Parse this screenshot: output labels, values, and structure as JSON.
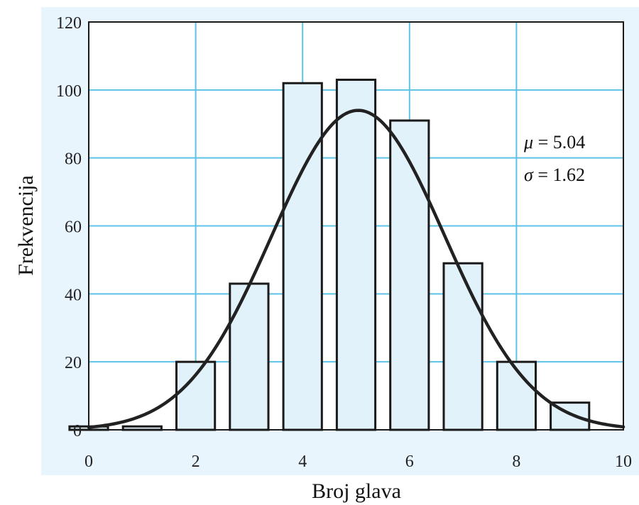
{
  "chart_data": {
    "type": "bar",
    "xlabel": "Broj glava",
    "ylabel": "Frekvencija",
    "xlim": [
      0,
      10
    ],
    "ylim": [
      0,
      120
    ],
    "xticks": [
      0,
      2,
      4,
      6,
      8,
      10
    ],
    "yticks": [
      0,
      20,
      40,
      60,
      80,
      100,
      120
    ],
    "grid": true,
    "bars": [
      {
        "x": 0,
        "value": 1
      },
      {
        "x": 1,
        "value": 1
      },
      {
        "x": 2,
        "value": 20
      },
      {
        "x": 3,
        "value": 43
      },
      {
        "x": 4,
        "value": 102
      },
      {
        "x": 5,
        "value": 103
      },
      {
        "x": 6,
        "value": 91
      },
      {
        "x": 7,
        "value": 49
      },
      {
        "x": 8,
        "value": 20
      },
      {
        "x": 9,
        "value": 8
      }
    ],
    "fit_curve": {
      "type": "normal",
      "mu": 5.04,
      "sigma": 1.62,
      "peak": 94
    },
    "annotations": [
      {
        "symbol": "μ",
        "text": " = 5.04"
      },
      {
        "symbol": "σ",
        "text": " = 1.62"
      }
    ],
    "colors": {
      "panel": "#e8f5fc",
      "plot_bg": "#ffffff",
      "grid": "#5ec3e6",
      "bar_fill": "#e1f2fb",
      "bar_stroke": "#1a1a1a",
      "curve": "#222222"
    }
  }
}
